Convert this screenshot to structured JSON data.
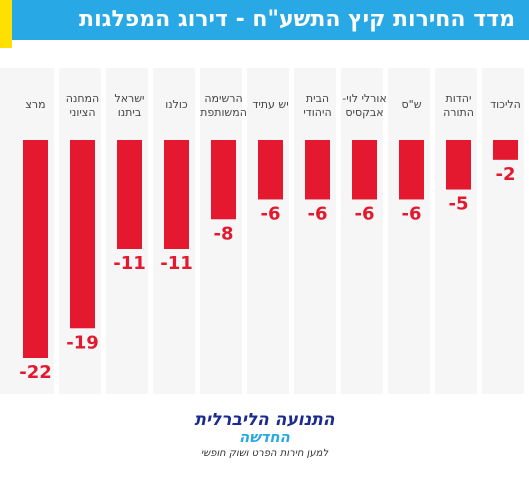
{
  "title": "מדד החירות קיץ התשע\"ח - דירוג המפלגות",
  "logo": {
    "line1": "התנועה הליברלית",
    "line2": "החדשה",
    "tagline": "למען חירות הפרט ושוק חופשי"
  },
  "colors": {
    "header": "#29a8e6",
    "accent": "#ffe000",
    "bar": "#e4192f",
    "logo": "#1b2a8f"
  },
  "chart_data": {
    "type": "bar",
    "categories": [
      [
        "הליכוד"
      ],
      [
        "יהדות",
        "התורה"
      ],
      [
        "ש\"ס"
      ],
      [
        "אורלי לוי-",
        "אבקסיס"
      ],
      [
        "הבית",
        "היהודי"
      ],
      [
        "יש עתיד"
      ],
      [
        "הרשימה",
        "המשותפת"
      ],
      [
        "כולנו"
      ],
      [
        "ישראל",
        "ביתנו"
      ],
      [
        "המחנה",
        "הציוני"
      ],
      [
        "מרצ"
      ]
    ],
    "values": [
      -2,
      -5,
      -6,
      -6,
      -6,
      -6,
      -8,
      -11,
      -11,
      -19,
      -22
    ],
    "data_labels": [
      "-2",
      "-5",
      "-6",
      "-6",
      "-6",
      "-6",
      "-8",
      "-11",
      "-11",
      "-19",
      "-22"
    ],
    "ylim": [
      -22,
      0
    ],
    "grid": false,
    "legend": "none",
    "category_order": "right-to-left"
  }
}
